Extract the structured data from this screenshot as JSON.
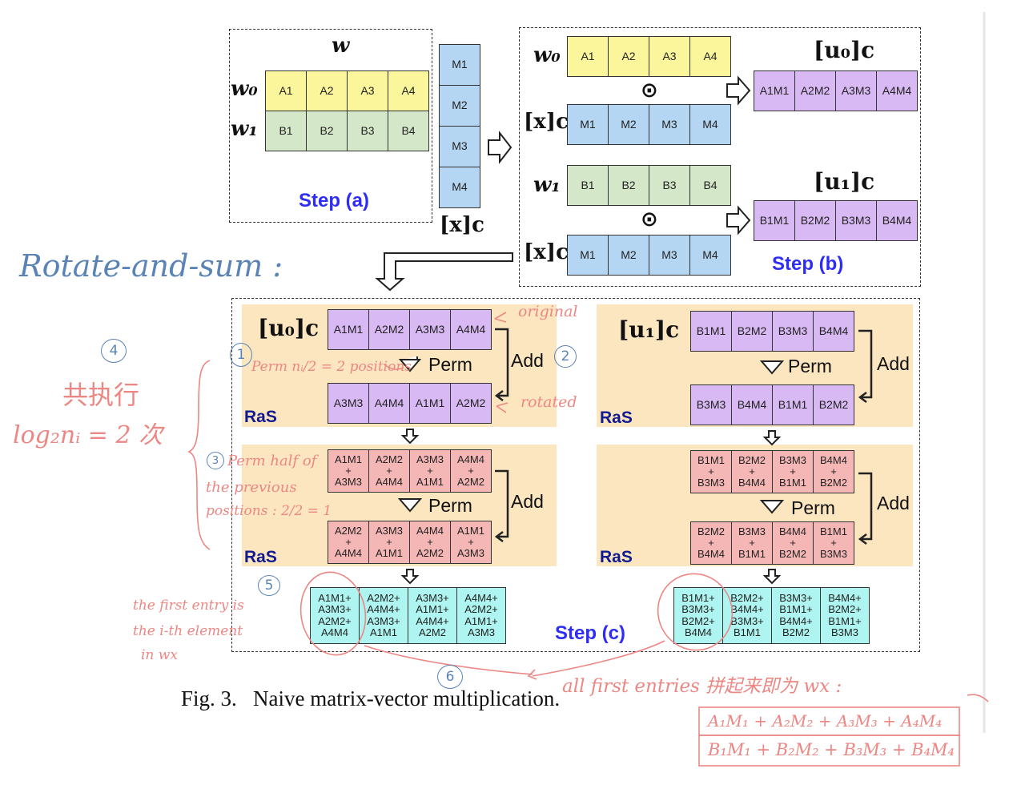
{
  "caption": "Fig. 3.   Naive matrix-vector multiplication.",
  "step_a": {
    "label": "Step (a)",
    "w_label": "w",
    "w0_label": "w₀",
    "w1_label": "w₁",
    "w0": [
      "A1",
      "A2",
      "A3",
      "A4"
    ],
    "w1": [
      "B1",
      "B2",
      "B3",
      "B4"
    ],
    "x": [
      "M1",
      "M2",
      "M3",
      "M4"
    ],
    "x_label": "[x]c"
  },
  "step_b": {
    "label": "Step (b)",
    "w0_label": "w₀",
    "w1_label": "w₁",
    "x_label": "[x]c",
    "w0": [
      "A1",
      "A2",
      "A3",
      "A4"
    ],
    "w1": [
      "B1",
      "B2",
      "B3",
      "B4"
    ],
    "x": [
      "M1",
      "M2",
      "M3",
      "M4"
    ],
    "odot": "⊙",
    "u0_label": "[u₀]c",
    "u1_label": "[u₁]c",
    "u0": [
      "A1M1",
      "A2M2",
      "A3M3",
      "A4M4"
    ],
    "u1": [
      "B1M1",
      "B2M2",
      "B3M3",
      "B4M4"
    ]
  },
  "step_c": {
    "label": "Step (c)",
    "ras": "RaS",
    "perm": "Perm",
    "add": "Add",
    "left": {
      "title": "[u₀]c",
      "row1": [
        "A1M1",
        "A2M2",
        "A3M3",
        "A4M4"
      ],
      "row2": [
        "A3M3",
        "A4M4",
        "A1M1",
        "A2M2"
      ],
      "row3": [
        [
          "A1M1",
          "+",
          "A3M3"
        ],
        [
          "A2M2",
          "+",
          "A4M4"
        ],
        [
          "A3M3",
          "+",
          "A1M1"
        ],
        [
          "A4M4",
          "+",
          "A2M2"
        ]
      ],
      "row4": [
        [
          "A2M2",
          "+",
          "A4M4"
        ],
        [
          "A3M3",
          "+",
          "A1M1"
        ],
        [
          "A4M4",
          "+",
          "A2M2"
        ],
        [
          "A1M1",
          "+",
          "A3M3"
        ]
      ],
      "row5": [
        [
          "A1M1+",
          "A3M3+",
          "A2M2+",
          "A4M4"
        ],
        [
          "A2M2+",
          "A4M4+",
          "A3M3+",
          "A1M1"
        ],
        [
          "A3M3+",
          "A1M1+",
          "A4M4+",
          "A2M2"
        ],
        [
          "A4M4+",
          "A2M2+",
          "A1M1+",
          "A3M3"
        ]
      ]
    },
    "right": {
      "title": "[u₁]c",
      "row1": [
        "B1M1",
        "B2M2",
        "B3M3",
        "B4M4"
      ],
      "row2": [
        "B3M3",
        "B4M4",
        "B1M1",
        "B2M2"
      ],
      "row3": [
        [
          "B1M1",
          "+",
          "B3M3"
        ],
        [
          "B2M2",
          "+",
          "B4M4"
        ],
        [
          "B3M3",
          "+",
          "B1M1"
        ],
        [
          "B4M4",
          "+",
          "B2M2"
        ]
      ],
      "row4": [
        [
          "B2M2",
          "+",
          "B4M4"
        ],
        [
          "B3M3",
          "+",
          "B1M1"
        ],
        [
          "B4M4",
          "+",
          "B2M2"
        ],
        [
          "B1M1",
          "+",
          "B3M3"
        ]
      ],
      "row5": [
        [
          "B1M1+",
          "B3M3+",
          "B2M2+",
          "B4M4"
        ],
        [
          "B2M2+",
          "B4M4+",
          "B3M3+",
          "B1M1"
        ],
        [
          "B3M3+",
          "B1M1+",
          "B4M4+",
          "B2M2"
        ],
        [
          "B4M4+",
          "B2M2+",
          "B1M1+",
          "B3M3"
        ]
      ]
    }
  },
  "annotations": {
    "rotate_and_sum": "Rotate-and-sum :",
    "original": "original",
    "rotated": "rotated",
    "n1": "1",
    "n2": "2",
    "n3": "3",
    "n4": "4",
    "n5": "5",
    "n6": "6",
    "perm_positions": "Perm nᵢ/2 = 2 positions",
    "perm_half_1": "Perm half of",
    "perm_half_2": "the previous",
    "perm_half_3": "positions : 2/2 = 1",
    "exec_1": "共执行",
    "exec_2": "log₂nᵢ = 2 次",
    "first_entry_1": "the first entry is",
    "first_entry_2": "the i-th element",
    "first_entry_3": "in wx",
    "all_first": "all first entries 拼起来即为 wx :",
    "result_1": "A₁M₁ + A₂M₂ + A₃M₃ + A₄M₄",
    "result_2": "B₁M₁ + B₂M₂ + B₃M₃ + B₄M₄"
  },
  "colors": {
    "w0": "#fbf59b",
    "w1": "#d5e7c9",
    "x": "#b5d6f2",
    "u": "#d9b9f3",
    "ras_rows": "#f5b7b5",
    "result": "#aef4f0",
    "panel": "#fbe6c0",
    "step_label": "#2d2df5",
    "ink_pink": "#ec8784",
    "ink_blue": "#5a83b6"
  }
}
